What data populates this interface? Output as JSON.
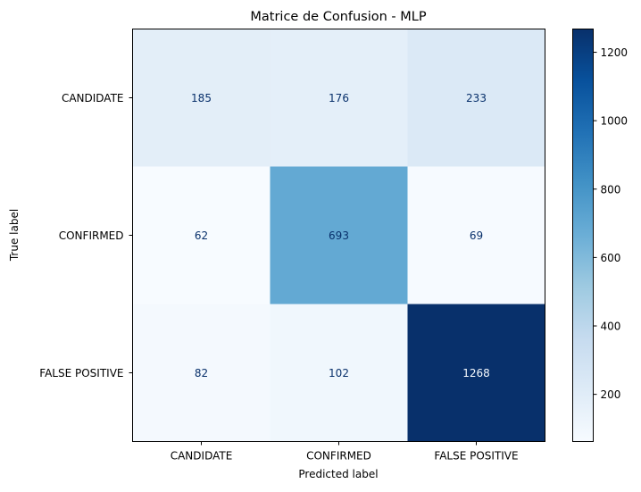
{
  "chart_data": {
    "type": "heatmap",
    "title": "Matrice de Confusion - MLP",
    "xlabel": "Predicted label",
    "ylabel": "True label",
    "x_categories": [
      "CANDIDATE",
      "CONFIRMED",
      "FALSE POSITIVE"
    ],
    "y_categories": [
      "CANDIDATE",
      "CONFIRMED",
      "FALSE POSITIVE"
    ],
    "values": [
      [
        185,
        176,
        233
      ],
      [
        62,
        693,
        69
      ],
      [
        82,
        102,
        1268
      ]
    ],
    "colormap": "Blues",
    "colorbar": {
      "min": 62,
      "max": 1268,
      "ticks": [
        200,
        400,
        600,
        800,
        1000,
        1200
      ]
    },
    "grid": false
  }
}
